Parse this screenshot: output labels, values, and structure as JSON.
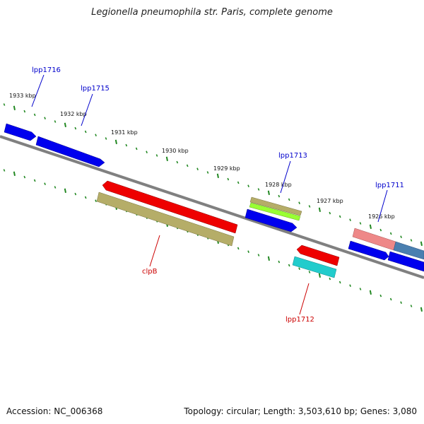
{
  "title": "Legionella pneumophila str. Paris, complete genome",
  "footer": {
    "accession": "Accession: NC_006368",
    "summary": "Topology: circular; Length: 3,503,610 bp; Genes: 3,080"
  },
  "ticks": [
    {
      "label": "1933 kbp"
    },
    {
      "label": "1932 kbp"
    },
    {
      "label": "1931 kbp"
    },
    {
      "label": "1930 kbp"
    },
    {
      "label": "1929 kbp"
    },
    {
      "label": "1928 kbp"
    },
    {
      "label": "1927 kbp"
    },
    {
      "label": "1926 kbp"
    }
  ],
  "gene_labels": [
    {
      "name": "lpp1716",
      "color": "#0000cc"
    },
    {
      "name": "lpp1715",
      "color": "#0000cc"
    },
    {
      "name": "lpp1713",
      "color": "#0000cc"
    },
    {
      "name": "lpp1711",
      "color": "#0000cc"
    },
    {
      "name": "clpB",
      "color": "#cc0000"
    },
    {
      "name": "lpp1712",
      "color": "#cc0000"
    }
  ],
  "colors": {
    "backbone": "#808080",
    "cds_forward": "#0000ee",
    "cds_reverse": "#ee0000",
    "feature_olive": "#b5ad68",
    "feature_lime": "#99ff33",
    "feature_cyan": "#22cccc",
    "feature_pink": "#ee8888",
    "feature_steel": "#4a7fb0",
    "tick": "#228822"
  }
}
